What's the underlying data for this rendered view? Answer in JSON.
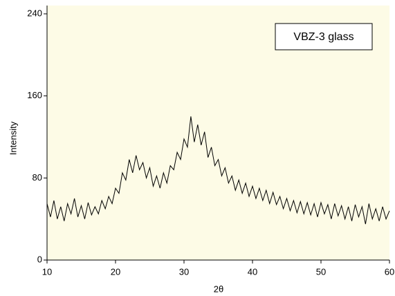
{
  "chart_data": {
    "type": "line",
    "annotation": "VBZ-3 glass",
    "xlabel": "2θ",
    "ylabel": "Intensity",
    "x": [
      10,
      10.5,
      11,
      11.5,
      12,
      12.5,
      13,
      13.5,
      14,
      14.5,
      15,
      15.5,
      16,
      16.5,
      17,
      17.5,
      18,
      18.5,
      19,
      19.5,
      20,
      20.5,
      21,
      21.5,
      22,
      22.5,
      23,
      23.5,
      24,
      24.5,
      25,
      25.5,
      26,
      26.5,
      27,
      27.5,
      28,
      28.5,
      29,
      29.5,
      30,
      30.5,
      31,
      31.5,
      32,
      32.5,
      33,
      33.5,
      34,
      34.5,
      35,
      35.5,
      36,
      36.5,
      37,
      37.5,
      38,
      38.5,
      39,
      39.5,
      40,
      40.5,
      41,
      41.5,
      42,
      42.5,
      43,
      43.5,
      44,
      44.5,
      45,
      45.5,
      46,
      46.5,
      47,
      47.5,
      48,
      48.5,
      49,
      49.5,
      50,
      50.5,
      51,
      51.5,
      52,
      52.5,
      53,
      53.5,
      54,
      54.5,
      55,
      55.5,
      56,
      56.5,
      57,
      57.5,
      58,
      58.5,
      59,
      59.5,
      60
    ],
    "values": [
      55,
      42,
      58,
      40,
      52,
      38,
      55,
      45,
      60,
      42,
      53,
      40,
      56,
      44,
      52,
      45,
      58,
      50,
      62,
      55,
      70,
      65,
      85,
      78,
      98,
      85,
      102,
      88,
      95,
      80,
      90,
      72,
      82,
      70,
      85,
      75,
      92,
      88,
      105,
      98,
      118,
      110,
      140,
      115,
      132,
      112,
      125,
      100,
      110,
      92,
      98,
      82,
      90,
      75,
      82,
      68,
      78,
      65,
      75,
      62,
      72,
      60,
      70,
      58,
      68,
      55,
      66,
      54,
      62,
      50,
      60,
      48,
      58,
      46,
      57,
      45,
      56,
      44,
      55,
      42,
      56,
      45,
      54,
      40,
      55,
      43,
      53,
      40,
      52,
      38,
      54,
      42,
      52,
      35,
      55,
      40,
      50,
      38,
      52,
      40,
      48
    ],
    "color": "#000000",
    "xlim": [
      10,
      60
    ],
    "xticks": [
      10,
      20,
      30,
      40,
      50,
      60
    ],
    "ylim": [
      0,
      240
    ],
    "yticks": [
      0,
      80,
      160,
      240
    ]
  }
}
